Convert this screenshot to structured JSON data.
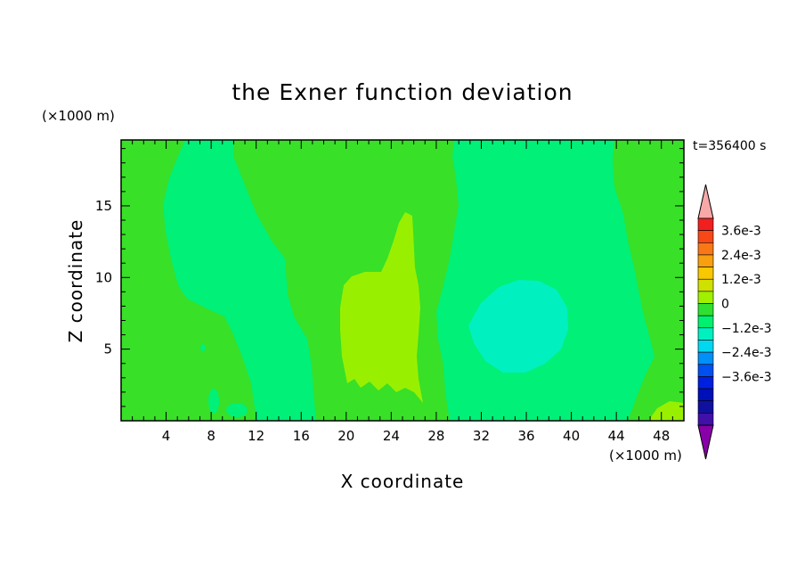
{
  "chart_data": {
    "type": "heatmap",
    "title": "the Exner function deviation",
    "xlabel": "X coordinate",
    "ylabel": "Z coordinate",
    "x_unit": "(×1000 m)",
    "z_unit": "(×1000 m)",
    "time_label": "t=356400 s",
    "xlim": [
      0,
      50
    ],
    "zlim": [
      0,
      19.6
    ],
    "x_ticks": [
      4,
      8,
      12,
      16,
      20,
      24,
      28,
      32,
      36,
      40,
      44,
      48
    ],
    "z_ticks": [
      5,
      10,
      15
    ],
    "colorbar": {
      "labels": [
        "3.6e-3",
        "2.4e-3",
        "1.2e-3",
        "0",
        "−1.2e-3",
        "−2.4e-3",
        "−3.6e-3"
      ],
      "colors": [
        "#f8a8a8",
        "#f02020",
        "#f84818",
        "#f87818",
        "#f8a010",
        "#f8c800",
        "#d0e000",
        "#a0f000",
        "#30e030",
        "#00f070",
        "#00f0c0",
        "#00d8f0",
        "#0090f8",
        "#0050f0",
        "#0020e0",
        "#0010b8",
        "#1010a0",
        "#4010a8",
        "#8800a8"
      ]
    },
    "regions": [
      {
        "level": "0",
        "color": "#38e028"
      },
      {
        "level": "-0.3e-3",
        "color": "#00f078"
      },
      {
        "level": "0.3e-3",
        "color": "#98f000"
      },
      {
        "level": "-0.6e-3",
        "color": "#00f0c0"
      }
    ]
  }
}
